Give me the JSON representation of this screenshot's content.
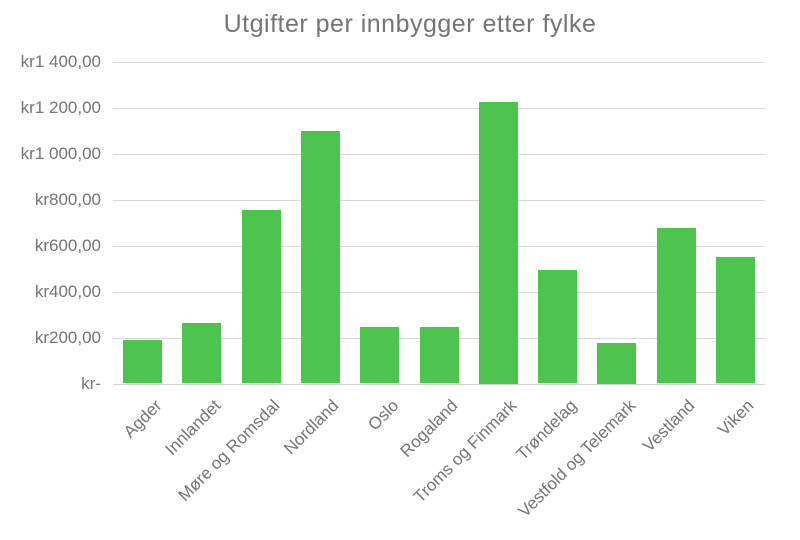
{
  "chart_data": {
    "type": "bar",
    "title": "Utgifter per innbygger etter fylke",
    "categories": [
      "Agder",
      "Innlandet",
      "Møre og Romsdal",
      "Nordland",
      "Oslo",
      "Rogaland",
      "Troms og Finmark",
      "Trøndelag",
      "Vestfold og Telemark",
      "Vestland",
      "Viken"
    ],
    "values": [
      190,
      265,
      755,
      1100,
      245,
      245,
      1225,
      495,
      175,
      675,
      550
    ],
    "xlabel": "",
    "ylabel": "",
    "ylim": [
      0,
      1400
    ],
    "y_tick_values": [
      1400,
      1200,
      1000,
      800,
      600,
      400,
      200,
      0
    ],
    "y_tick_labels": [
      "kr1 400,00",
      "kr1 200,00",
      "kr1 000,00",
      "kr800,00",
      "kr600,00",
      "kr400,00",
      "kr200,00",
      "kr-"
    ],
    "grid": "horizontal",
    "legend": "none",
    "colors": {
      "bar": "#4dc44d",
      "text": "#757575",
      "gridline": "#d9d9d9",
      "background": "#ffffff"
    }
  }
}
